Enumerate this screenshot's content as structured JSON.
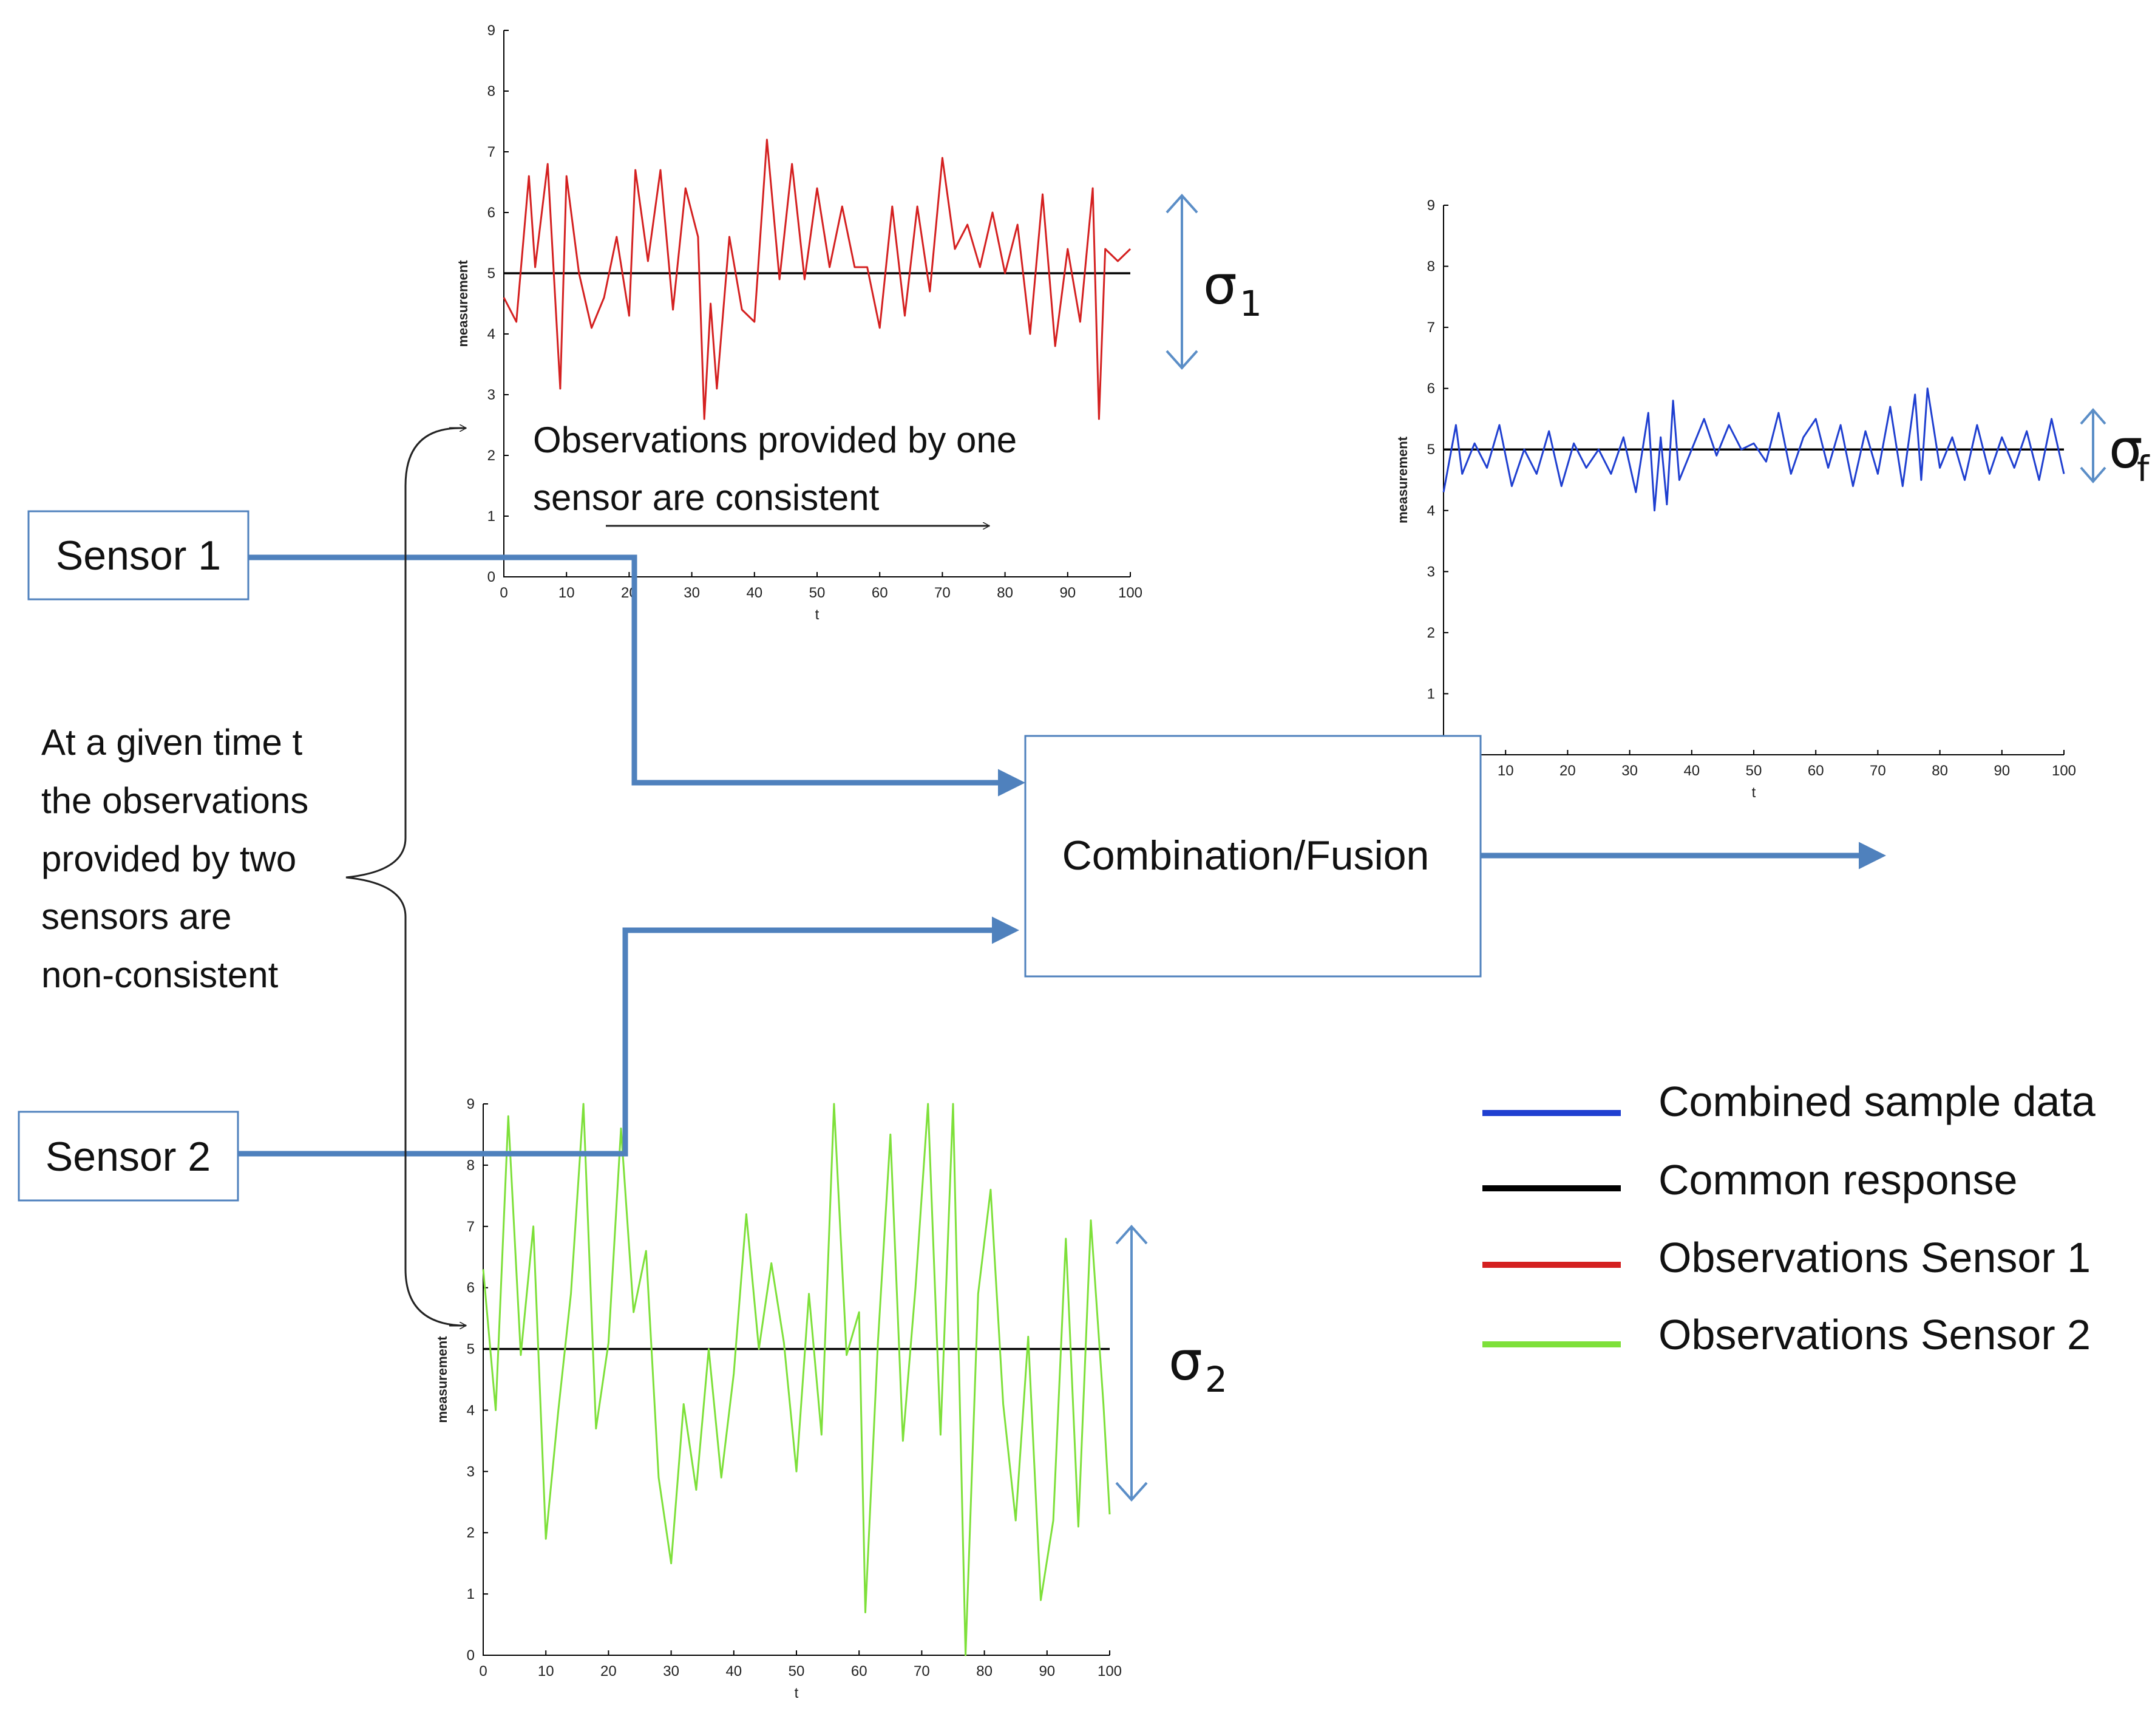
{
  "diagram": {
    "sensor1_label": "Sensor 1",
    "sensor2_label": "Sensor 2",
    "fusion_label": "Combination/Fusion",
    "note_top_line1": "Observations provided by one",
    "note_top_line2": "sensor are consistent",
    "note_left_lines": [
      "At a given time t",
      "the observations",
      "provided by two",
      "sensors are",
      "non-consistent"
    ],
    "sigma_symbol": "σ",
    "sigma1_sub": "1",
    "sigma2_sub": "2",
    "sigmaf_sub": "f",
    "arrow_color": "#4f81bd"
  },
  "legend": [
    {
      "label": "Combined sample data",
      "color": "#1f3fd0"
    },
    {
      "label": "Common response",
      "color": "#000000"
    },
    {
      "label": "Observations Sensor 1",
      "color": "#d42020"
    },
    {
      "label": "Observations Sensor 2",
      "color": "#7ee03a"
    }
  ],
  "chart_data": [
    {
      "type": "line",
      "title": "",
      "xlabel": "t",
      "ylabel": "measurement",
      "xlim": [
        0,
        100
      ],
      "ylim": [
        0,
        9
      ],
      "xticks": [
        "0",
        "10",
        "20",
        "30",
        "40",
        "50",
        "60",
        "70",
        "80",
        "90",
        "100"
      ],
      "yticks": [
        "0",
        "1",
        "2",
        "3",
        "4",
        "5",
        "6",
        "7",
        "8",
        "9"
      ],
      "series": [
        {
          "name": "Observations Sensor 1",
          "color": "#d42020",
          "x": [
            0,
            2,
            4,
            5,
            7,
            9,
            10,
            12,
            14,
            16,
            18,
            20,
            21,
            23,
            25,
            27,
            29,
            31,
            32,
            33,
            34,
            36,
            38,
            40,
            42,
            44,
            46,
            48,
            50,
            52,
            54,
            56,
            58,
            60,
            62,
            64,
            66,
            68,
            70,
            72,
            74,
            76,
            78,
            80,
            82,
            84,
            86,
            88,
            90,
            92,
            94,
            95,
            96,
            98,
            100
          ],
          "y": [
            4.6,
            4.2,
            6.6,
            5.1,
            6.8,
            3.1,
            6.6,
            5.0,
            4.1,
            4.6,
            5.6,
            4.3,
            6.7,
            5.2,
            6.7,
            4.4,
            6.4,
            5.6,
            2.6,
            4.5,
            3.1,
            5.6,
            4.4,
            4.2,
            7.2,
            4.9,
            6.8,
            4.9,
            6.4,
            5.1,
            6.1,
            5.1,
            5.1,
            4.1,
            6.1,
            4.3,
            6.1,
            4.7,
            6.9,
            5.4,
            5.8,
            5.1,
            6.0,
            5.0,
            5.8,
            4.0,
            6.3,
            3.8,
            5.4,
            4.2,
            6.4,
            2.6,
            5.4,
            5.2,
            5.4
          ]
        },
        {
          "name": "Common response",
          "color": "#000000",
          "x": [
            0,
            100
          ],
          "y": [
            5,
            5
          ]
        }
      ]
    },
    {
      "type": "line",
      "title": "",
      "xlabel": "t",
      "ylabel": "measurement",
      "xlim": [
        0,
        100
      ],
      "ylim": [
        0,
        9
      ],
      "xticks": [
        "0",
        "10",
        "20",
        "30",
        "40",
        "50",
        "60",
        "70",
        "80",
        "90",
        "100"
      ],
      "yticks": [
        "0",
        "1",
        "2",
        "3",
        "4",
        "5",
        "6",
        "7",
        "8",
        "9"
      ],
      "series": [
        {
          "name": "Combined sample data",
          "color": "#1f3fd0",
          "x": [
            0,
            2,
            3,
            5,
            7,
            9,
            11,
            13,
            15,
            17,
            19,
            21,
            23,
            25,
            27,
            29,
            31,
            33,
            34,
            35,
            36,
            37,
            38,
            40,
            42,
            44,
            46,
            48,
            50,
            52,
            54,
            56,
            58,
            60,
            62,
            64,
            66,
            68,
            70,
            72,
            74,
            76,
            77,
            78,
            80,
            82,
            84,
            86,
            88,
            90,
            92,
            94,
            96,
            98,
            100
          ],
          "y": [
            4.3,
            5.4,
            4.6,
            5.1,
            4.7,
            5.4,
            4.4,
            5.0,
            4.6,
            5.3,
            4.4,
            5.1,
            4.7,
            5.0,
            4.6,
            5.2,
            4.3,
            5.6,
            4.0,
            5.2,
            4.1,
            5.8,
            4.5,
            5.0,
            5.5,
            4.9,
            5.4,
            5.0,
            5.1,
            4.8,
            5.6,
            4.6,
            5.2,
            5.5,
            4.7,
            5.4,
            4.4,
            5.3,
            4.6,
            5.7,
            4.4,
            5.9,
            4.5,
            6.0,
            4.7,
            5.2,
            4.5,
            5.4,
            4.6,
            5.2,
            4.7,
            5.3,
            4.5,
            5.5,
            4.6
          ]
        },
        {
          "name": "Common response",
          "color": "#000000",
          "x": [
            0,
            100
          ],
          "y": [
            5,
            5
          ]
        }
      ]
    },
    {
      "type": "line",
      "title": "",
      "xlabel": "t",
      "ylabel": "measurement",
      "xlim": [
        0,
        100
      ],
      "ylim": [
        0,
        9
      ],
      "xticks": [
        "0",
        "10",
        "20",
        "30",
        "40",
        "50",
        "60",
        "70",
        "80",
        "90",
        "100"
      ],
      "yticks": [
        "0",
        "1",
        "2",
        "3",
        "4",
        "5",
        "6",
        "7",
        "8",
        "9"
      ],
      "series": [
        {
          "name": "Observations Sensor 2",
          "color": "#7ee03a",
          "x": [
            0,
            2,
            4,
            6,
            8,
            10,
            12,
            14,
            16,
            18,
            20,
            22,
            24,
            26,
            28,
            30,
            32,
            34,
            36,
            38,
            40,
            42,
            44,
            46,
            48,
            50,
            52,
            54,
            56,
            58,
            60,
            61,
            63,
            65,
            67,
            69,
            71,
            73,
            75,
            77,
            79,
            81,
            83,
            85,
            87,
            89,
            91,
            93,
            95,
            97,
            99,
            100
          ],
          "y": [
            6.3,
            4.0,
            8.8,
            4.9,
            7.0,
            1.9,
            4.0,
            5.9,
            9.0,
            3.7,
            5.1,
            8.6,
            5.6,
            6.6,
            2.9,
            1.5,
            4.1,
            2.7,
            5.0,
            2.9,
            4.6,
            7.2,
            5.0,
            6.4,
            5.1,
            3.0,
            5.9,
            3.6,
            9.0,
            4.9,
            5.6,
            0.7,
            5.1,
            8.5,
            3.5,
            6.0,
            9.0,
            3.6,
            9.0,
            0.0,
            5.9,
            7.6,
            4.1,
            2.2,
            5.2,
            0.9,
            2.2,
            6.8,
            2.1,
            7.1,
            4.1,
            2.3
          ]
        },
        {
          "name": "Common response",
          "color": "#000000",
          "x": [
            0,
            100
          ],
          "y": [
            5,
            5
          ]
        }
      ]
    }
  ]
}
